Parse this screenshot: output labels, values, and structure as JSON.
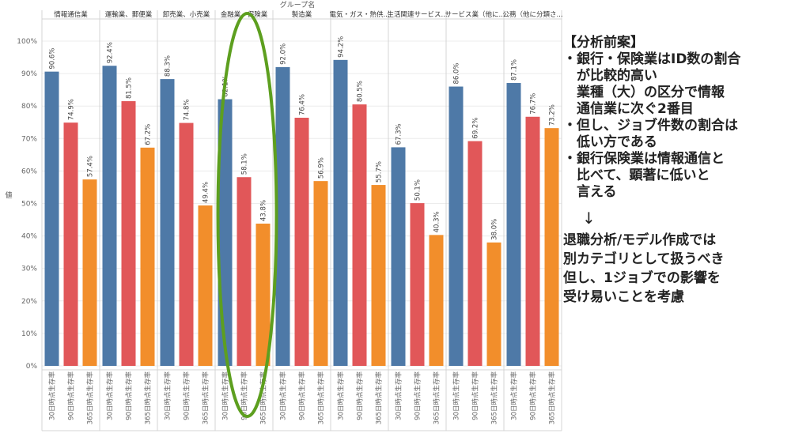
{
  "chart_data": {
    "type": "bar",
    "header": "グループ名",
    "ylabel": "値",
    "ylim": [
      0,
      100
    ],
    "yticks": [
      "0%",
      "10%",
      "20%",
      "30%",
      "40%",
      "50%",
      "60%",
      "70%",
      "80%",
      "90%",
      "100%"
    ],
    "series_labels": [
      "30日時点生存率",
      "90日時点生存率",
      "365日時点生存率"
    ],
    "colors": [
      "#4e79a7",
      "#e15759",
      "#f28e2b"
    ],
    "highlight_color": "#5d9f1f",
    "highlight_group": 3,
    "groups": [
      {
        "name": "情報通信業",
        "values": [
          90.6,
          74.9,
          57.4
        ],
        "labels": [
          "90.6%",
          "74.9%",
          "57.4%"
        ]
      },
      {
        "name": "運輸業、郵便業",
        "values": [
          92.4,
          81.5,
          67.2
        ],
        "labels": [
          "92.4%",
          "81.5%",
          "67.2%"
        ]
      },
      {
        "name": "卸売業、小売業",
        "values": [
          88.3,
          74.8,
          49.4
        ],
        "labels": [
          "88.3%",
          "74.8%",
          "49.4%"
        ]
      },
      {
        "name": "金融業、保険業",
        "values": [
          82.1,
          58.1,
          43.8
        ],
        "labels": [
          "82.1%",
          "58.1%",
          "43.8%"
        ]
      },
      {
        "name": "製造業",
        "values": [
          92.0,
          76.4,
          56.9
        ],
        "labels": [
          "92.0%",
          "76.4%",
          "56.9%"
        ]
      },
      {
        "name": "電気・ガス・熱供...",
        "values": [
          94.2,
          80.5,
          55.7
        ],
        "labels": [
          "94.2%",
          "80.5%",
          "55.7%"
        ]
      },
      {
        "name": "生活関連サービス...",
        "values": [
          67.3,
          50.1,
          40.3
        ],
        "labels": [
          "67.3%",
          "50.1%",
          "40.3%"
        ]
      },
      {
        "name": "サービス業（他に...",
        "values": [
          86.0,
          69.2,
          38.0
        ],
        "labels": [
          "86.0%",
          "69.2%",
          "38.0%"
        ]
      },
      {
        "name": "公務（他に分類さ...",
        "values": [
          87.1,
          76.7,
          73.2
        ],
        "labels": [
          "87.1%",
          "76.7%",
          "73.2%"
        ]
      }
    ]
  },
  "notes": {
    "heading": "【分析前案】",
    "lines": [
      "・銀行・保険業はID数の割合",
      "　が比較的高い",
      "　業種（大）の区分で情報",
      "　通信業に次ぐ2番目",
      "・但し、ジョブ件数の割合は",
      "　低い方である",
      "・銀行保険業は情報通信と",
      "　比べて、顕著に低いと",
      "　言える"
    ],
    "arrow": "↓",
    "conclusion": [
      "退職分析/モデル作成では",
      "別カテゴリとして扱うべき",
      "但し、1ジョブでの影響を",
      "受け易いことを考慮"
    ]
  }
}
